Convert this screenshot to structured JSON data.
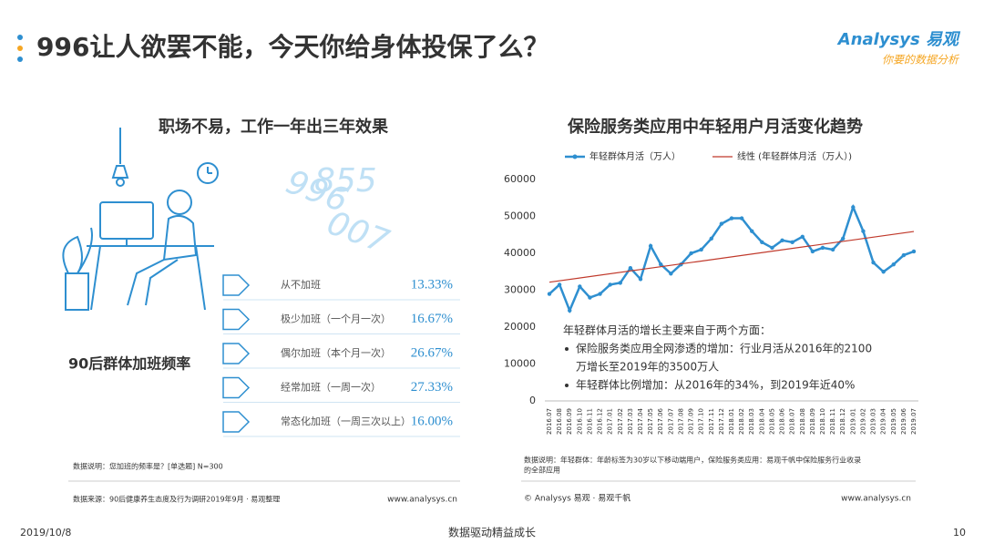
{
  "header": {
    "title": "996让人欲罢不能，今天你给身体投保了么？",
    "logo": "Analysys 易观",
    "slogan": "你要的数据分析"
  },
  "left_panel": {
    "title": "职场不易，工作一年出三年效果",
    "decor": [
      "996",
      "855",
      "007"
    ],
    "side_label": "90后群体加班频率",
    "items": [
      {
        "label": "从不加班",
        "percent": "13.33%"
      },
      {
        "label": "极少加班（一个月一次）",
        "percent": "16.67%"
      },
      {
        "label": "偶尔加班（本个月一次）",
        "percent": "26.67%"
      },
      {
        "label": "经常加班（一周一次）",
        "percent": "27.33%"
      },
      {
        "label": "常态化加班（一周三次以上）",
        "percent": "16.00%"
      }
    ],
    "note": "数据说明：您加班的频率是？[单选题] N=300",
    "source": "数据来源：90后健康养生态度及行为调研2019年9月 · 易观整理",
    "site": "www.analysys.cn"
  },
  "chart_data": {
    "type": "line",
    "title": "保险服务类应用中年轻用户月活变化趋势",
    "categories": [
      "2016.07",
      "2016.08",
      "2016.09",
      "2016.10",
      "2016.11",
      "2016.12",
      "2017.01",
      "2017.02",
      "2017.03",
      "2017.04",
      "2017.05",
      "2017.06",
      "2017.07",
      "2017.08",
      "2017.09",
      "2017.10",
      "2017.11",
      "2017.12",
      "2018.01",
      "2018.02",
      "2018.03",
      "2018.04",
      "2018.05",
      "2018.06",
      "2018.07",
      "2018.08",
      "2018.09",
      "2018.10",
      "2018.11",
      "2018.12",
      "2019.01",
      "2019.02",
      "2019.03",
      "2019.04",
      "2019.05",
      "2019.06",
      "2019.07"
    ],
    "series": [
      {
        "name": "年轻群体月活（万人）",
        "color": "#2e8fd0",
        "values": [
          29000,
          31500,
          24500,
          31000,
          28000,
          29000,
          31500,
          32000,
          36000,
          33000,
          42000,
          37000,
          34500,
          37000,
          40000,
          41000,
          44000,
          48000,
          49500,
          49500,
          46000,
          43000,
          41500,
          43500,
          43000,
          44500,
          40500,
          41500,
          41000,
          44000,
          52500,
          46000,
          37500,
          35000,
          37000,
          39500,
          40500
        ]
      },
      {
        "name": "线性 (年轻群体月活（万人）)",
        "color": "#c0392b",
        "fit": "linear"
      }
    ],
    "ylim": [
      0,
      60000
    ],
    "yticks": [
      0,
      10000,
      20000,
      30000,
      40000,
      50000,
      60000
    ],
    "annotation": {
      "lead": "年轻群体月活的增长主要来自于两个方面：",
      "bullets": [
        [
          "保险服务类应用全网渗透的增加：行业月活从2016年的2100",
          "万增长至2019年的3500万人"
        ],
        [
          "年轻群体比例增加：从2016年的34%，到2019年近40%"
        ]
      ]
    },
    "note": [
      "数据说明：年轻群体：年龄标签为30岁以下移动端用户，保险服务类应用：易观千帆中保险服务行业收录",
      "的全部应用"
    ],
    "source": "© Analysys 易观 · 易观千帆",
    "site": "www.analysys.cn"
  },
  "footer": {
    "date": "2019/10/8",
    "slogan": "数据驱动精益成长",
    "page": "10"
  }
}
